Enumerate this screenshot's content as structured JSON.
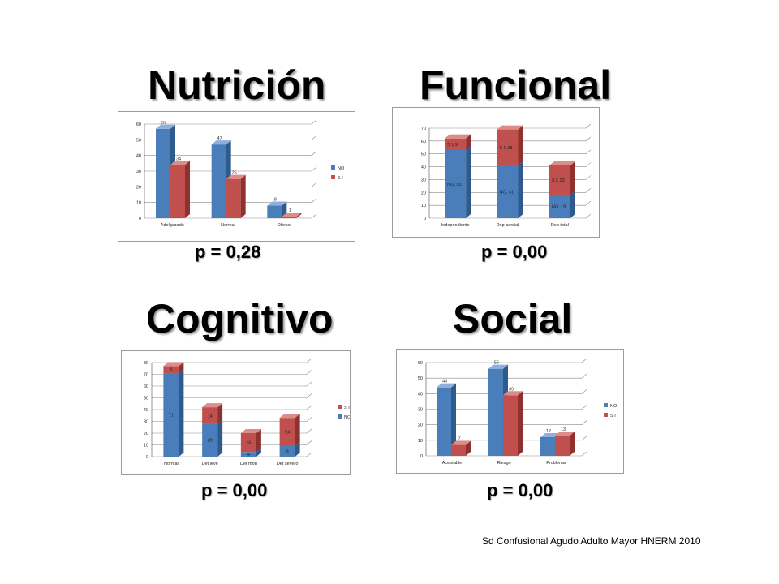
{
  "slide": {
    "titles": {
      "nutricion": "Nutrición",
      "funcional": "Funcional",
      "cognitivo": "Cognitivo",
      "social": "Social"
    },
    "pvalues": {
      "nutricion": "p = 0,28",
      "funcional": "p = 0,00",
      "cognitivo": "p = 0,00",
      "social": "p = 0,00"
    },
    "footer": "Sd Confusional Agudo Adulto Mayor HNERM 2010",
    "colors": {
      "blue": "#4a7ebb",
      "red": "#c0504d"
    }
  },
  "chart_data": [
    {
      "id": "nutricion",
      "type": "bar",
      "stacked": false,
      "categories": [
        "Adelgazado",
        "Normal",
        "Obeso"
      ],
      "series": [
        {
          "name": "NO",
          "values": [
            57,
            47,
            8
          ]
        },
        {
          "name": "S I",
          "values": [
            34,
            25,
            1
          ]
        }
      ],
      "data_labels": [
        [
          "57",
          "47",
          "8"
        ],
        [
          "34",
          "25",
          "1"
        ]
      ],
      "yticks": [
        "0",
        "10",
        "20",
        "30",
        "40",
        "50",
        "60"
      ],
      "ylim": [
        0,
        60
      ],
      "grid": true,
      "legend": "right",
      "legend_order": [
        "NO",
        "S I"
      ]
    },
    {
      "id": "funcional",
      "type": "bar",
      "stacked": true,
      "categories": [
        "Independiente",
        "Dep parcial",
        "Dep total"
      ],
      "series": [
        {
          "name": "NO",
          "values": [
            53,
            41,
            18
          ]
        },
        {
          "name": "S I",
          "values": [
            9,
            28,
            23
          ]
        }
      ],
      "data_labels": [
        [
          "NO, 53",
          "NO, 41",
          "NO, 18"
        ],
        [
          "S I, 9",
          "S I, 28",
          "S I, 23"
        ]
      ],
      "yticks": [
        "0",
        "10",
        "20",
        "30",
        "40",
        "50",
        "60",
        "70"
      ],
      "ylim": [
        0,
        70
      ],
      "grid": true,
      "legend": "none"
    },
    {
      "id": "cognitivo",
      "type": "bar",
      "stacked": true,
      "categories": [
        "Normal",
        "Det leve",
        "Det mod",
        "Det severo"
      ],
      "series": [
        {
          "name": "NO",
          "values": [
            71,
            28,
            4,
            9
          ]
        },
        {
          "name": "S I",
          "values": [
            6,
            14,
            16,
            24
          ]
        }
      ],
      "data_labels": [
        [
          "71",
          "28",
          "4",
          "9"
        ],
        [
          "6",
          "14",
          "16",
          "24"
        ]
      ],
      "yticks": [
        "0",
        "10",
        "20",
        "30",
        "40",
        "50",
        "60",
        "70",
        "80"
      ],
      "ylim": [
        0,
        80
      ],
      "grid": true,
      "legend": "right",
      "legend_order": [
        "S I",
        "NO"
      ]
    },
    {
      "id": "social",
      "type": "bar",
      "stacked": false,
      "categories": [
        "Aceptable",
        "Riesgo",
        "Problema"
      ],
      "series": [
        {
          "name": "NO",
          "values": [
            44,
            56,
            12
          ]
        },
        {
          "name": "S I",
          "values": [
            7,
            39,
            13
          ]
        }
      ],
      "data_labels": [
        [
          "44",
          "56",
          "12"
        ],
        [
          "7",
          "39",
          "13"
        ]
      ],
      "yticks": [
        "0",
        "10",
        "20",
        "30",
        "40",
        "50",
        "60"
      ],
      "ylim": [
        0,
        60
      ],
      "grid": true,
      "legend": "right",
      "legend_order": [
        "NO",
        "S I"
      ]
    }
  ]
}
